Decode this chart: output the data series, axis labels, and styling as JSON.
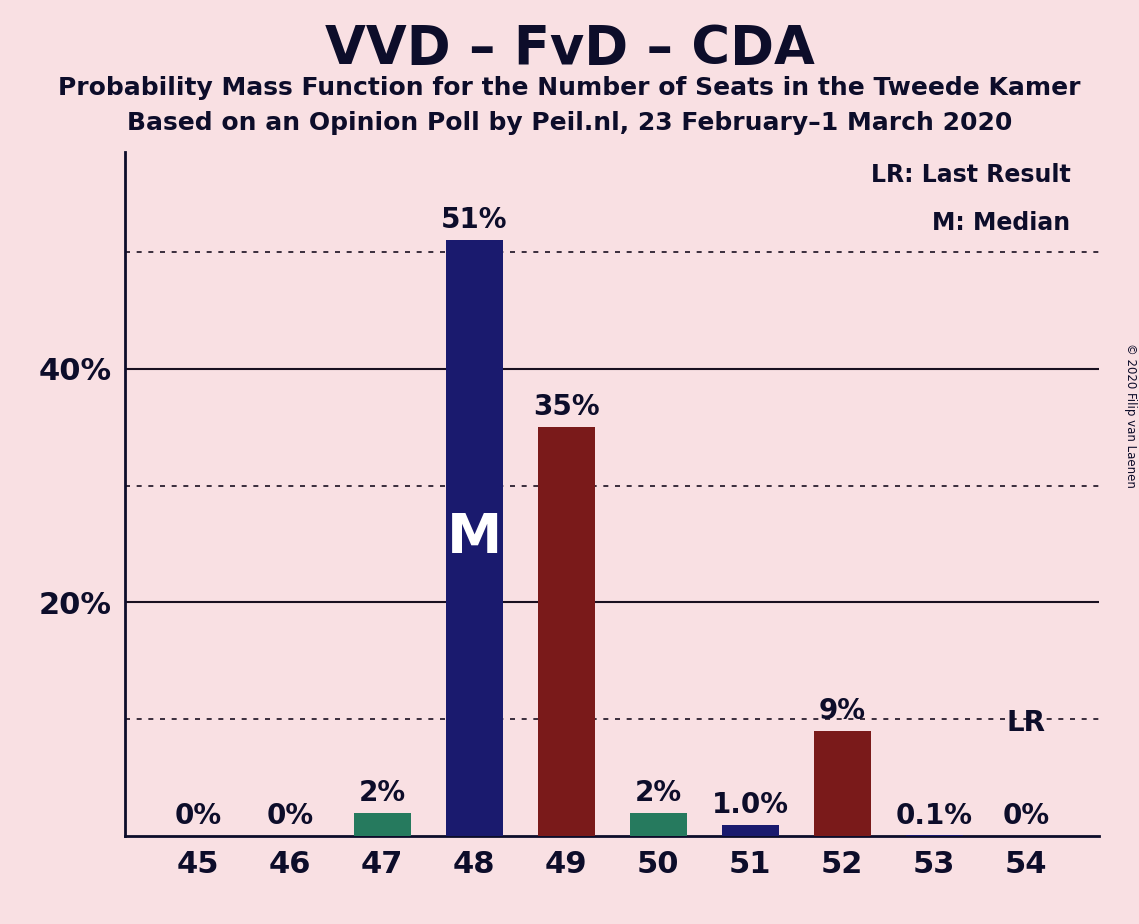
{
  "title": "VVD – FvD – CDA",
  "subtitle1": "Probability Mass Function for the Number of Seats in the Tweede Kamer",
  "subtitle2": "Based on an Opinion Poll by Peil.nl, 23 February–1 March 2020",
  "copyright": "© 2020 Filip van Laenen",
  "categories": [
    45,
    46,
    47,
    48,
    49,
    50,
    51,
    52,
    53,
    54
  ],
  "values": [
    0.0,
    0.0,
    0.02,
    0.51,
    0.35,
    0.02,
    0.01,
    0.09,
    0.001,
    0.0
  ],
  "labels": [
    "0%",
    "0%",
    "2%",
    "51%",
    "35%",
    "2%",
    "1.0%",
    "9%",
    "0.1%",
    "0%"
  ],
  "bar_colors": [
    "#1a1a6e",
    "#1a1a6e",
    "#267a5e",
    "#1a1a6e",
    "#7a1a1a",
    "#267a5e",
    "#1a1a6e",
    "#7a1a1a",
    "#1a1a6e",
    "#1a1a6e"
  ],
  "median_bar_index": 3,
  "median_label": "M",
  "lr_bar_index": 9,
  "lr_label": "LR",
  "legend_lr": "LR: Last Result",
  "legend_m": "M: Median",
  "background_color": "#f9e0e3",
  "ylabel_ticks": [
    0.0,
    0.1,
    0.2,
    0.3,
    0.4,
    0.5
  ],
  "ylabel_labels": [
    "",
    "",
    "20%",
    "",
    "40%",
    ""
  ],
  "dotted_lines": [
    0.1,
    0.3,
    0.5
  ],
  "solid_lines": [
    0.2,
    0.4
  ],
  "ylim": [
    0,
    0.585
  ],
  "title_fontsize": 38,
  "subtitle_fontsize": 18,
  "axis_fontsize": 22,
  "label_fontsize": 20,
  "median_fontsize": 40,
  "lr_fontsize": 20
}
